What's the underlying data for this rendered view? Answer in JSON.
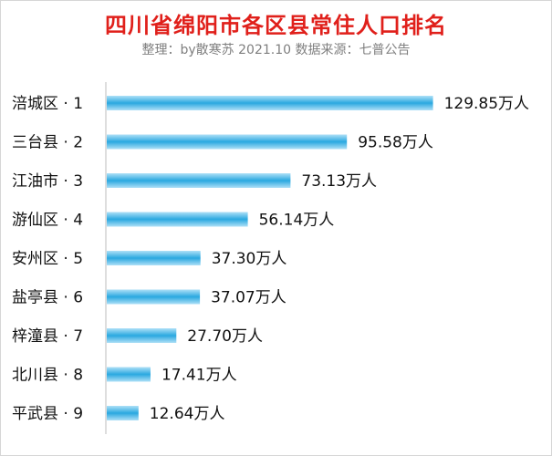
{
  "chart_data": {
    "type": "bar",
    "orientation": "horizontal",
    "title": "四川省绵阳市各区县常住人口排名",
    "subtitle": "整理：by散寒苏 2021.10 数据来源：七普公告",
    "categories": [
      "涪城区 · 1",
      "三台县 · 2",
      "江油市 · 3",
      "游仙区 · 4",
      "安州区 · 5",
      "盐亭县 · 6",
      "梓潼县 · 7",
      "北川县 · 8",
      "平武县 · 9"
    ],
    "values": [
      129.85,
      95.58,
      73.13,
      56.14,
      37.3,
      37.07,
      27.7,
      17.41,
      12.64
    ],
    "value_labels": [
      "129.85万人",
      "95.58万人",
      "73.13万人",
      "56.14万人",
      "37.30万人",
      "37.07万人",
      "27.70万人",
      "17.41万人",
      "12.64万人"
    ],
    "xlim": [
      0,
      130
    ],
    "grid": false,
    "bar_color": "#2aa8e0"
  }
}
